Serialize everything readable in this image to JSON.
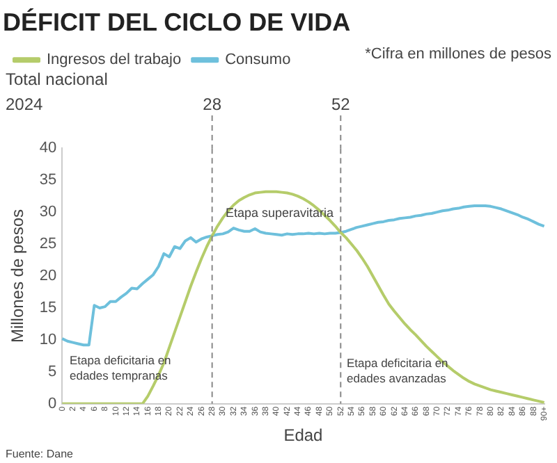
{
  "chart_data": {
    "type": "line",
    "title": "DÉFICIT DEL CICLO DE VIDA",
    "subtitle": "Total nacional",
    "xlabel": "Edad",
    "ylabel": "Millones de pesos",
    "categories": [
      "0",
      null,
      "2",
      null,
      "4",
      null,
      "6",
      null,
      "8",
      null,
      "10",
      null,
      "12",
      null,
      "14",
      null,
      "16",
      null,
      "18",
      null,
      "20",
      null,
      "22",
      null,
      "24",
      null,
      "26",
      null,
      "28",
      null,
      "30",
      null,
      "32",
      null,
      "34",
      null,
      "36",
      null,
      "38",
      null,
      "40",
      null,
      "42",
      null,
      "44",
      null,
      "46",
      null,
      "48",
      null,
      "50",
      null,
      "52",
      null,
      "54",
      null,
      "56",
      null,
      "58",
      null,
      "60",
      null,
      "62",
      null,
      "64",
      null,
      "66",
      null,
      "68",
      null,
      "70",
      null,
      "72",
      null,
      "74",
      null,
      "76",
      null,
      "78",
      null,
      "80",
      null,
      "82",
      null,
      "84",
      null,
      "86",
      null,
      "88",
      null,
      "90+"
    ],
    "series": [
      {
        "name": "Ingresos del trabajo",
        "color": "#b5cc6a",
        "values": [
          0,
          0,
          0,
          0,
          0,
          0,
          0,
          0,
          0,
          0,
          0,
          0,
          0,
          0,
          0,
          0,
          1.2,
          2.8,
          4.5,
          6.4,
          8.8,
          11.2,
          13.6,
          16,
          18.4,
          20.6,
          22.7,
          24.6,
          26.3,
          27.8,
          29.1,
          30.2,
          31.1,
          31.8,
          32.3,
          32.7,
          33,
          33.1,
          33.2,
          33.2,
          33.2,
          33.1,
          33,
          32.8,
          32.5,
          32.1,
          31.6,
          31,
          30.3,
          29.5,
          28.7,
          27.8,
          26.8,
          26,
          25,
          24,
          22.8,
          21.5,
          20,
          18.5,
          17,
          15.6,
          14.5,
          13.5,
          12.5,
          11.6,
          10.8,
          9.9,
          9,
          8.2,
          7.4,
          6.6,
          5.9,
          5.2,
          4.6,
          4,
          3.5,
          3.1,
          2.8,
          2.5,
          2.2,
          2,
          1.8,
          1.6,
          1.4,
          1.2,
          1,
          0.8,
          0.6,
          0.4,
          0.2
        ]
      },
      {
        "name": "Consumo",
        "color": "#6ec0dc",
        "values": [
          10.2,
          9.8,
          9.6,
          9.4,
          9.2,
          9.2,
          15.4,
          15,
          15.2,
          16,
          16,
          16.7,
          17.3,
          18.1,
          18,
          18.8,
          19.5,
          20.2,
          21.5,
          23.5,
          23,
          24.6,
          24.3,
          25.5,
          26,
          25.3,
          25.8,
          26.1,
          26.3,
          26.5,
          26.6,
          26.9,
          27.5,
          27.2,
          27,
          27,
          27.4,
          26.9,
          26.7,
          26.6,
          26.5,
          26.4,
          26.6,
          26.5,
          26.6,
          26.6,
          26.7,
          26.6,
          26.7,
          26.6,
          26.7,
          26.7,
          26.8,
          27,
          27.3,
          27.6,
          27.8,
          28,
          28.2,
          28.4,
          28.5,
          28.7,
          28.8,
          29,
          29.1,
          29.2,
          29.4,
          29.5,
          29.7,
          29.8,
          30,
          30.2,
          30.3,
          30.5,
          30.6,
          30.8,
          30.9,
          31,
          31,
          31,
          30.9,
          30.7,
          30.5,
          30.2,
          29.9,
          29.6,
          29.2,
          28.9,
          28.5,
          28.1,
          27.8
        ]
      }
    ],
    "ylim": [
      0,
      40
    ],
    "yticks": [
      0,
      5,
      10,
      15,
      20,
      25,
      30,
      35,
      40
    ],
    "grid": false,
    "legend": "top left",
    "ref_lines": [
      {
        "axis": "x",
        "value": "28",
        "label": "28",
        "color": "#888888",
        "line_style": "dashed"
      },
      {
        "axis": "x",
        "value": "52",
        "label": "52",
        "color": "#888888",
        "line_style": "dashed"
      }
    ],
    "annotations": [
      "*Cifra en millones de pesos",
      "2024",
      "Fuente: Dane",
      "Etapa deficitaria en edades tempranas",
      "Etapa superavitaria",
      "Etapa deficitaria en edades avanzadas"
    ]
  }
}
